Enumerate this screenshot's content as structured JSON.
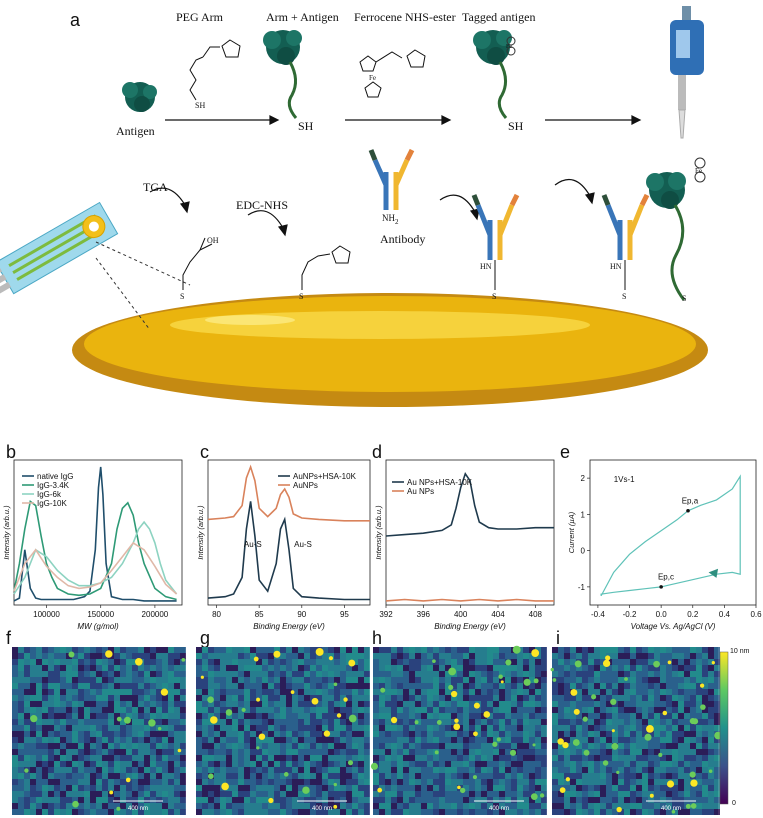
{
  "panel_a": {
    "label": "a",
    "peg_arm": "PEG Arm",
    "arm_antigen": "Arm + Antigen",
    "ferrocene": "Ferrocene NHS-ester",
    "tagged_antigen": "Tagged antigen",
    "antigen": "Antigen",
    "tga": "TGA",
    "edc_nhs": "EDC-NHS",
    "antibody": "Antibody",
    "sh": "SH",
    "s": "S",
    "oh": "OH",
    "hn": "HN",
    "nh2": "NH",
    "nh2_sub": "2",
    "fe": "Fe"
  },
  "chart_data": [
    {
      "panel": "b",
      "type": "line",
      "xlabel": "MW (g/mol)",
      "ylabel": "Intensity (arb.u.)",
      "xlim": [
        70000,
        225000
      ],
      "xticks": [
        "100000",
        "150000",
        "200000"
      ],
      "legend_position": "top-left",
      "series": [
        {
          "name": "native IgG",
          "color": "#1f4e6b",
          "x": [
            70000,
            75000,
            80000,
            85000,
            90000,
            95000,
            100000,
            105000,
            110000,
            115000,
            120000,
            125000,
            130000,
            135000,
            140000,
            145000,
            148000,
            150000,
            152000,
            155000,
            160000,
            170000,
            180000,
            190000,
            200000,
            210000,
            220000
          ],
          "y": [
            0.03,
            0.05,
            0.4,
            0.12,
            0.05,
            0.04,
            0.04,
            0.04,
            0.04,
            0.04,
            0.04,
            0.04,
            0.05,
            0.06,
            0.1,
            0.4,
            0.85,
            1.0,
            0.8,
            0.3,
            0.06,
            0.04,
            0.04,
            0.03,
            0.03,
            0.03,
            0.03
          ]
        },
        {
          "name": "IgG-3.4K",
          "color": "#2e9a76",
          "x": [
            70000,
            75000,
            80000,
            85000,
            90000,
            95000,
            100000,
            105000,
            110000,
            120000,
            130000,
            140000,
            150000,
            160000,
            165000,
            170000,
            175000,
            180000,
            185000,
            190000,
            200000,
            210000,
            220000
          ],
          "y": [
            0.1,
            0.3,
            0.55,
            0.75,
            0.72,
            0.5,
            0.3,
            0.2,
            0.12,
            0.08,
            0.07,
            0.08,
            0.12,
            0.3,
            0.55,
            0.7,
            0.74,
            0.65,
            0.45,
            0.3,
            0.12,
            0.06,
            0.04
          ]
        },
        {
          "name": "IgG-6k",
          "color": "#8dd3c1",
          "x": [
            70000,
            80000,
            90000,
            100000,
            110000,
            120000,
            130000,
            140000,
            150000,
            160000,
            170000,
            180000,
            185000,
            190000,
            195000,
            200000,
            205000,
            210000,
            220000
          ],
          "y": [
            0.08,
            0.2,
            0.4,
            0.35,
            0.25,
            0.18,
            0.14,
            0.14,
            0.16,
            0.2,
            0.3,
            0.45,
            0.55,
            0.6,
            0.55,
            0.45,
            0.3,
            0.18,
            0.08
          ]
        },
        {
          "name": "IgG-10K",
          "color": "#e0b8a8",
          "x": [
            70000,
            80000,
            90000,
            100000,
            110000,
            120000,
            130000,
            140000,
            150000,
            160000,
            170000,
            180000,
            190000,
            200000,
            210000,
            220000
          ],
          "y": [
            0.1,
            0.3,
            0.4,
            0.28,
            0.2,
            0.14,
            0.12,
            0.13,
            0.16,
            0.25,
            0.35,
            0.45,
            0.4,
            0.28,
            0.15,
            0.08
          ]
        }
      ]
    },
    {
      "panel": "c",
      "type": "line",
      "xlabel": "Binding Energy (eV)",
      "ylabel": "Intensity (arb.u.)",
      "xlim": [
        79,
        98
      ],
      "xticks": [
        "80",
        "85",
        "90",
        "95"
      ],
      "annotations": [
        "Au-S",
        "Au-S"
      ],
      "legend_position": "top-right",
      "series": [
        {
          "name": "AuNPs+HSA-10K",
          "color": "#1f3a4d",
          "x": [
            79,
            81,
            82,
            83,
            83.5,
            84,
            84.5,
            85,
            86,
            87,
            87.5,
            88,
            88.5,
            89,
            90,
            92,
            95,
            98
          ],
          "y": [
            0.05,
            0.06,
            0.08,
            0.2,
            0.55,
            0.75,
            0.5,
            0.18,
            0.1,
            0.3,
            0.55,
            0.62,
            0.4,
            0.12,
            0.06,
            0.05,
            0.04,
            0.04
          ]
        },
        {
          "name": "AuNPs",
          "color": "#d9825b",
          "x": [
            79,
            81,
            82,
            83,
            83.5,
            84,
            84.5,
            85,
            86,
            87,
            87.5,
            88,
            88.5,
            89,
            90,
            92,
            95,
            98
          ],
          "y": [
            0.62,
            0.63,
            0.64,
            0.72,
            0.92,
            1.0,
            0.9,
            0.7,
            0.64,
            0.7,
            0.8,
            0.84,
            0.78,
            0.66,
            0.63,
            0.62,
            0.61,
            0.61
          ]
        }
      ]
    },
    {
      "panel": "d",
      "type": "line",
      "xlabel": "Binding Energy (eV)",
      "ylabel": "Intensity (arb.u.)",
      "xlim": [
        392,
        410
      ],
      "xticks": [
        "392",
        "396",
        "400",
        "404",
        "408"
      ],
      "legend_position": "top-left",
      "series": [
        {
          "name": "Au NPs+HSA-10K",
          "color": "#1f3a4d",
          "x": [
            392,
            394,
            396,
            398,
            399,
            399.5,
            400,
            400.5,
            401,
            401.5,
            402,
            403,
            404,
            406,
            408,
            410
          ],
          "y": [
            0.5,
            0.51,
            0.52,
            0.54,
            0.58,
            0.7,
            0.85,
            0.95,
            0.9,
            0.72,
            0.6,
            0.56,
            0.55,
            0.55,
            0.56,
            0.56
          ]
        },
        {
          "name": "Au NPs",
          "color": "#d9825b",
          "x": [
            392,
            394,
            396,
            398,
            400,
            402,
            404,
            406,
            408,
            410
          ],
          "y": [
            0.03,
            0.04,
            0.03,
            0.04,
            0.03,
            0.04,
            0.03,
            0.04,
            0.03,
            0.03
          ]
        }
      ]
    },
    {
      "panel": "e",
      "type": "line",
      "xlabel": "Voltage Vs. Ag/AgCl (V)",
      "ylabel": "Current (µA)",
      "xlim": [
        -0.45,
        0.6
      ],
      "ylim": [
        -1.5,
        2.5
      ],
      "xticks": [
        "-0.4",
        "-0.2",
        "0.0",
        "0.2",
        "0.4",
        "0.6"
      ],
      "yticks": [
        "-1",
        "0",
        "1",
        "2"
      ],
      "annotations": [
        "1Vs-1",
        "Ep,a",
        "Ep,c"
      ],
      "series": [
        {
          "name": "",
          "color": "#5fc2b8",
          "x": [
            -0.38,
            -0.3,
            -0.2,
            -0.1,
            0.0,
            0.1,
            0.17,
            0.25,
            0.35,
            0.45,
            0.5,
            0.5,
            0.45,
            0.35,
            0.25,
            0.15,
            0.05,
            0.0,
            -0.1,
            -0.2,
            -0.3,
            -0.38,
            -0.38
          ],
          "y": [
            -1.25,
            -0.6,
            -0.1,
            0.25,
            0.55,
            0.85,
            1.1,
            1.25,
            1.4,
            1.7,
            2.05,
            -0.65,
            -0.6,
            -0.65,
            -0.75,
            -0.85,
            -0.95,
            -1.0,
            -1.05,
            -1.1,
            -1.15,
            -1.2,
            -1.25
          ]
        }
      ]
    }
  ],
  "afm": {
    "panels": [
      "f",
      "g",
      "h",
      "i"
    ],
    "scale_bar": "400 nm",
    "colorbar_max": "10 nm",
    "colorbar_min": "0",
    "spot_density": [
      0.2,
      0.5,
      0.6,
      0.85
    ]
  }
}
